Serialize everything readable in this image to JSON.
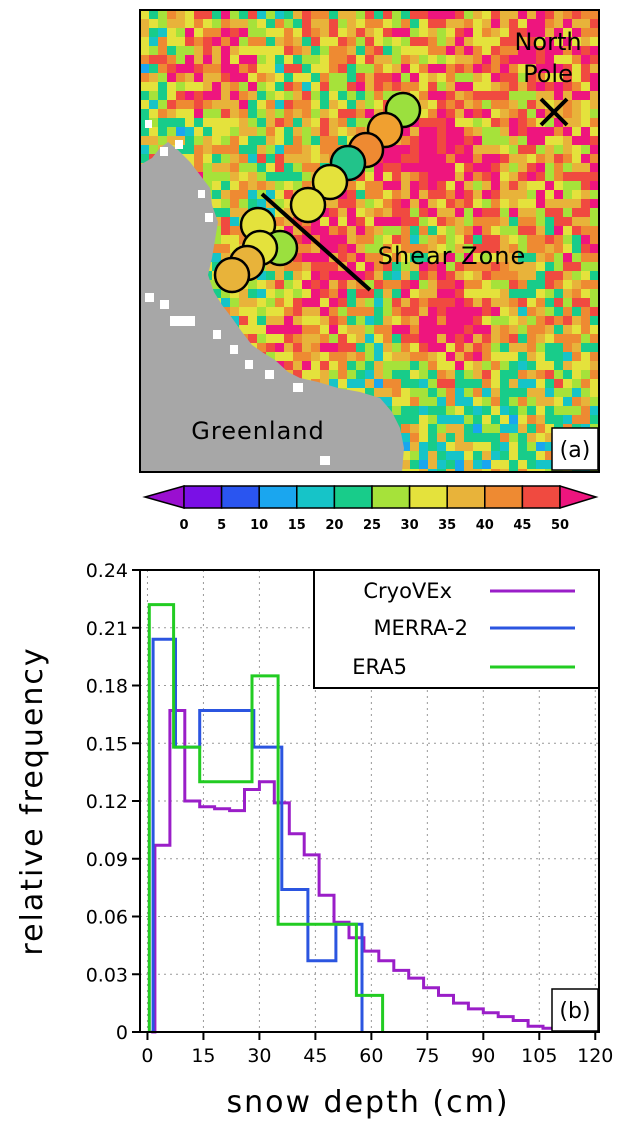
{
  "panel_a": {
    "labels": {
      "north_pole_line1": "North",
      "north_pole_line2": "Pole",
      "shear_zone": "Shear Zone",
      "greenland": "Greenland",
      "panel_tag": "(a)"
    },
    "colorbar": {
      "tick_labels": [
        "0",
        "5",
        "10",
        "15",
        "20",
        "25",
        "30",
        "35",
        "40",
        "45",
        "50"
      ],
      "colors": [
        "#9a0fd0",
        "#7a10e6",
        "#2a55f0",
        "#1aa6ef",
        "#16c4c8",
        "#18cc8a",
        "#a6e23a",
        "#e4e23c",
        "#e8b33a",
        "#ee8a32",
        "#f04a40",
        "#ee157e"
      ]
    },
    "track_circles": [
      {
        "snow_class": "30-35",
        "color": "#9be03e"
      },
      {
        "snow_class": "40-45",
        "color": "#f0a030"
      },
      {
        "snow_class": "45-50",
        "color": "#ee8a32"
      },
      {
        "snow_class": "25-30",
        "color": "#22c38a"
      },
      {
        "snow_class": "35-40",
        "color": "#e4e23c"
      },
      {
        "snow_class": "35-40",
        "color": "#e4e23c"
      },
      {
        "snow_class": "35-40",
        "color": "#e4e23c"
      },
      {
        "snow_class": "30-35",
        "color": "#9be03e"
      },
      {
        "snow_class": "35-40",
        "color": "#e4e23c"
      },
      {
        "snow_class": "40-45",
        "color": "#e8b33a"
      },
      {
        "snow_class": "40-45",
        "color": "#e8b33a"
      }
    ]
  },
  "chart_data": {
    "type": "line",
    "step": true,
    "panel_tag": "(b)",
    "xlabel": "snow depth (cm)",
    "ylabel": "relative frequency",
    "xlim": [
      -2,
      121
    ],
    "ylim": [
      0,
      0.24
    ],
    "xticks": [
      0,
      15,
      30,
      45,
      60,
      75,
      90,
      105,
      120
    ],
    "yticks": [
      0,
      0.03,
      0.06,
      0.09,
      0.12,
      0.15,
      0.18,
      0.21,
      0.24
    ],
    "xtick_labels": [
      "0",
      "15",
      "30",
      "45",
      "60",
      "75",
      "90",
      "105",
      "120"
    ],
    "ytick_labels": [
      "0",
      "0.03",
      "0.06",
      "0.09",
      "0.12",
      "0.15",
      "0.18",
      "0.21",
      "0.24"
    ],
    "grid": true,
    "legend_position": "top-right",
    "series": [
      {
        "name": "CryoVEx",
        "color": "#9a1ec8",
        "x": [
          1,
          2,
          2,
          6,
          6,
          10,
          10,
          14,
          14,
          18,
          18,
          22,
          22,
          26,
          26,
          30,
          30,
          34,
          34,
          38,
          38,
          42,
          42,
          46,
          46,
          50,
          50,
          54,
          54,
          58,
          58,
          62,
          62,
          66,
          66,
          70,
          70,
          74,
          74,
          78,
          78,
          82,
          82,
          86,
          86,
          90,
          90,
          94,
          94,
          98,
          98,
          102,
          102,
          106,
          106,
          109,
          109
        ],
        "y": [
          0,
          0,
          0.097,
          0.097,
          0.167,
          0.167,
          0.12,
          0.12,
          0.117,
          0.117,
          0.116,
          0.116,
          0.115,
          0.115,
          0.126,
          0.126,
          0.13,
          0.13,
          0.119,
          0.119,
          0.103,
          0.103,
          0.092,
          0.092,
          0.071,
          0.071,
          0.057,
          0.057,
          0.049,
          0.049,
          0.042,
          0.042,
          0.037,
          0.037,
          0.032,
          0.032,
          0.028,
          0.028,
          0.023,
          0.023,
          0.019,
          0.019,
          0.015,
          0.015,
          0.012,
          0.012,
          0.01,
          0.01,
          0.008,
          0.008,
          0.006,
          0.006,
          0.003,
          0.003,
          0.002,
          0.002,
          0
        ]
      },
      {
        "name": "MERRA-2",
        "color": "#2b55e0",
        "x": [
          1.5,
          1.5,
          7.5,
          7.5,
          14,
          14,
          21.5,
          21.5,
          28.5,
          28.5,
          36,
          36,
          43,
          43,
          50.5,
          50.5,
          57.5,
          57.5
        ],
        "y": [
          0,
          0.204,
          0.204,
          0.148,
          0.148,
          0.167,
          0.167,
          0.167,
          0.167,
          0.148,
          0.148,
          0.074,
          0.074,
          0.037,
          0.037,
          0.056,
          0.056,
          0
        ]
      },
      {
        "name": "ERA5",
        "color": "#22cc22",
        "x": [
          0.5,
          0.5,
          7,
          7,
          14,
          14,
          21,
          21,
          28,
          28,
          35,
          35,
          42,
          42,
          49,
          49,
          56,
          56,
          63,
          63
        ],
        "y": [
          0,
          0.222,
          0.222,
          0.148,
          0.148,
          0.13,
          0.13,
          0.13,
          0.13,
          0.185,
          0.185,
          0.056,
          0.056,
          0.056,
          0.056,
          0.056,
          0.056,
          0.019,
          0.019,
          0
        ]
      }
    ]
  }
}
